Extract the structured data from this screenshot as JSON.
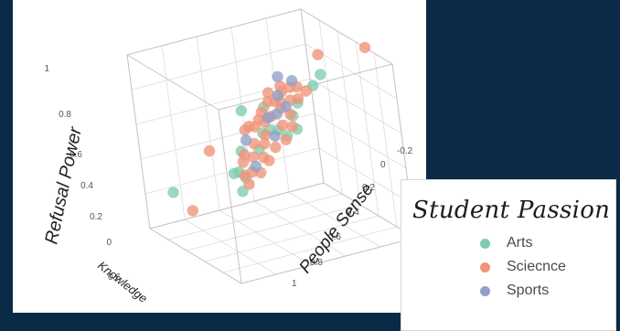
{
  "chart_data": {
    "type": "scatter",
    "title": "",
    "axes": {
      "vertical": {
        "label": "Refusal Power",
        "range": [
          0,
          1
        ],
        "ticks": [
          "0",
          "0.2",
          "0.4",
          "0.6",
          "0.8",
          "1"
        ]
      },
      "right": {
        "label": "People Sense",
        "range": [
          -0.2,
          1
        ],
        "ticks": [
          "-0.2",
          "0",
          "0.2",
          "0.4",
          "0.6",
          "0.8",
          "1"
        ]
      },
      "left": {
        "label": "Knowledge",
        "ticks": [
          "0.6"
        ]
      }
    },
    "grid": true,
    "legend": {
      "title": "Student Passion",
      "placement": "bottom-right",
      "items": [
        {
          "name": "Arts",
          "color": "#7fcdb0"
        },
        {
          "name": "Sciecnce",
          "color": "#f0937a"
        },
        {
          "name": "Sports",
          "color": "#8f9fc6"
        }
      ]
    },
    "series": [
      {
        "name": "Arts",
        "color": "#7fcdb0",
        "points": [
          {
            "x": 0.62,
            "y": 0.77,
            "z": 0.88
          },
          {
            "x": 0.6,
            "y": 0.73,
            "z": 0.82
          },
          {
            "x": 0.2,
            "y": 0.5,
            "z": 0.61
          },
          {
            "x": 0.12,
            "y": 0.1,
            "z": 0.22
          },
          {
            "x": 0.4,
            "y": 0.35,
            "z": 0.36
          },
          {
            "x": 0.38,
            "y": 0.33,
            "z": 0.35
          },
          {
            "x": 0.55,
            "y": 0.62,
            "z": 0.66
          },
          {
            "x": 0.62,
            "y": 0.6,
            "z": 0.61
          },
          {
            "x": 0.58,
            "y": 0.56,
            "z": 0.57
          },
          {
            "x": 0.42,
            "y": 0.5,
            "z": 0.55
          },
          {
            "x": 0.5,
            "y": 0.55,
            "z": 0.58
          },
          {
            "x": 0.35,
            "y": 0.4,
            "z": 0.45
          },
          {
            "x": 0.52,
            "y": 0.3,
            "z": 0.3
          },
          {
            "x": 0.45,
            "y": 0.36,
            "z": 0.34
          },
          {
            "x": 0.48,
            "y": 0.44,
            "z": 0.49
          },
          {
            "x": 0.3,
            "y": 0.58,
            "z": 0.64
          },
          {
            "x": 0.54,
            "y": 0.66,
            "z": 0.72
          },
          {
            "x": 0.47,
            "y": 0.52,
            "z": 0.58
          }
        ]
      },
      {
        "name": "Sciecnce",
        "color": "#f0937a",
        "points": [
          {
            "x": 0.7,
            "y": 1.0,
            "z": 1.0
          },
          {
            "x": 0.45,
            "y": 0.85,
            "z": 0.92
          },
          {
            "x": 0.08,
            "y": 0.35,
            "z": 0.38
          },
          {
            "x": 0.28,
            "y": 0.12,
            "z": 0.16
          },
          {
            "x": 0.32,
            "y": 0.45,
            "z": 0.55
          },
          {
            "x": 0.38,
            "y": 0.48,
            "z": 0.58
          },
          {
            "x": 0.42,
            "y": 0.52,
            "z": 0.61
          },
          {
            "x": 0.44,
            "y": 0.55,
            "z": 0.64
          },
          {
            "x": 0.46,
            "y": 0.6,
            "z": 0.68
          },
          {
            "x": 0.4,
            "y": 0.6,
            "z": 0.7
          },
          {
            "x": 0.36,
            "y": 0.58,
            "z": 0.69
          },
          {
            "x": 0.48,
            "y": 0.65,
            "z": 0.72
          },
          {
            "x": 0.52,
            "y": 0.62,
            "z": 0.66
          },
          {
            "x": 0.5,
            "y": 0.58,
            "z": 0.6
          },
          {
            "x": 0.45,
            "y": 0.5,
            "z": 0.55
          },
          {
            "x": 0.41,
            "y": 0.45,
            "z": 0.5
          },
          {
            "x": 0.38,
            "y": 0.4,
            "z": 0.44
          },
          {
            "x": 0.44,
            "y": 0.42,
            "z": 0.44
          },
          {
            "x": 0.5,
            "y": 0.45,
            "z": 0.45
          },
          {
            "x": 0.55,
            "y": 0.5,
            "z": 0.51
          },
          {
            "x": 0.58,
            "y": 0.55,
            "z": 0.55
          },
          {
            "x": 0.35,
            "y": 0.52,
            "z": 0.6
          },
          {
            "x": 0.31,
            "y": 0.48,
            "z": 0.56
          },
          {
            "x": 0.47,
            "y": 0.7,
            "z": 0.78
          },
          {
            "x": 0.43,
            "y": 0.68,
            "z": 0.77
          },
          {
            "x": 0.39,
            "y": 0.65,
            "z": 0.74
          },
          {
            "x": 0.53,
            "y": 0.72,
            "z": 0.77
          },
          {
            "x": 0.57,
            "y": 0.6,
            "z": 0.61
          },
          {
            "x": 0.49,
            "y": 0.38,
            "z": 0.38
          },
          {
            "x": 0.46,
            "y": 0.35,
            "z": 0.36
          },
          {
            "x": 0.52,
            "y": 0.34,
            "z": 0.33
          },
          {
            "x": 0.55,
            "y": 0.4,
            "z": 0.39
          },
          {
            "x": 0.42,
            "y": 0.62,
            "z": 0.7
          },
          {
            "x": 0.36,
            "y": 0.66,
            "z": 0.76
          },
          {
            "x": 0.33,
            "y": 0.55,
            "z": 0.63
          },
          {
            "x": 0.29,
            "y": 0.62,
            "z": 0.71
          },
          {
            "x": 0.51,
            "y": 0.68,
            "z": 0.73
          },
          {
            "x": 0.47,
            "y": 0.48,
            "z": 0.51
          },
          {
            "x": 0.4,
            "y": 0.38,
            "z": 0.41
          },
          {
            "x": 0.56,
            "y": 0.45,
            "z": 0.45
          }
        ]
      },
      {
        "name": "Sports",
        "color": "#8f9fc6",
        "points": [
          {
            "x": 0.3,
            "y": 0.68,
            "z": 0.79
          },
          {
            "x": 0.42,
            "y": 0.7,
            "z": 0.8
          },
          {
            "x": 0.48,
            "y": 0.62,
            "z": 0.69
          },
          {
            "x": 0.4,
            "y": 0.55,
            "z": 0.62
          },
          {
            "x": 0.34,
            "y": 0.44,
            "z": 0.5
          },
          {
            "x": 0.5,
            "y": 0.4,
            "z": 0.41
          },
          {
            "x": 0.52,
            "y": 0.52,
            "z": 0.56
          },
          {
            "x": 0.45,
            "y": 0.58,
            "z": 0.65
          },
          {
            "x": 0.38,
            "y": 0.63,
            "z": 0.72
          }
        ]
      }
    ]
  }
}
